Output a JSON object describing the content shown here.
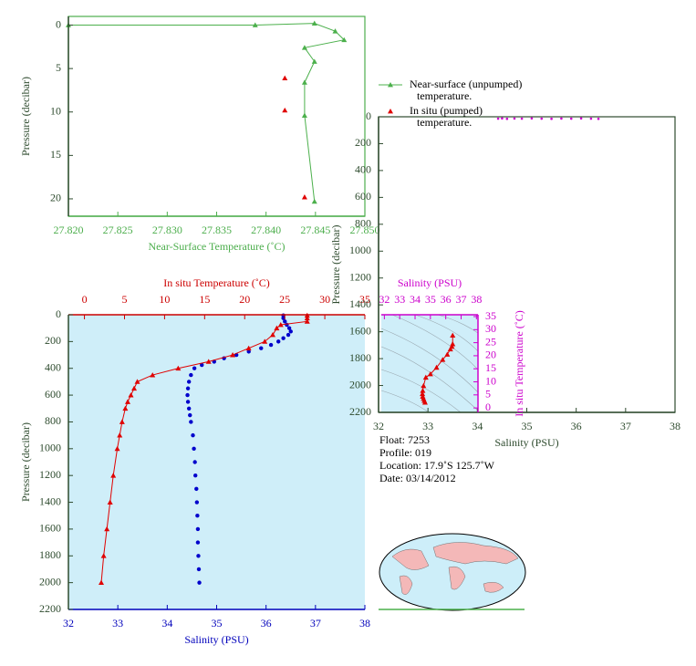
{
  "chart_data": [
    {
      "type": "line",
      "xlabel": "Near-Surface Temperature (˚C)",
      "ylabel": "Pressure (decibar)",
      "xlim": [
        27.82,
        27.85
      ],
      "xticks": [
        {
          "value": 27.82,
          "label": "27.820"
        },
        27.825,
        {
          "value": 27.83,
          "label": "27.830"
        },
        27.835,
        {
          "value": 27.84,
          "label": "27.840"
        },
        27.845,
        {
          "value": 27.85,
          "label": "27.850"
        }
      ],
      "ylim": [
        22,
        -1
      ],
      "yticks": [
        0,
        5,
        10,
        15,
        20
      ],
      "series": [
        {
          "name": "Near-surface (unpumped) temperature.",
          "color": "#4cb04c",
          "line": true,
          "marker": "triangle",
          "x": [
            27.82,
            27.8389,
            27.8449,
            27.847,
            27.8479,
            27.8439,
            27.8449,
            27.8439,
            27.8439,
            27.8449
          ],
          "values": [
            0,
            0,
            -0.2,
            0.7,
            1.7,
            2.6,
            4.2,
            6.6,
            10.4,
            20.3
          ]
        },
        {
          "name": "In situ (pumped) temperature.",
          "color": "#e00000",
          "line": false,
          "marker": "triangle",
          "x": [
            27.8419,
            27.8419,
            27.8439
          ],
          "values": [
            6.1,
            9.8,
            19.8
          ]
        }
      ]
    },
    {
      "type": "scatter",
      "xlabel": "Salinity (PSU)",
      "x2label": "In situ Temperature (˚C)",
      "ylabel": "Pressure (decibar)",
      "xlim": [
        32,
        38
      ],
      "xticks": [
        32,
        33,
        34,
        35,
        36,
        37,
        38
      ],
      "x2lim": [
        -2,
        35
      ],
      "x2ticks": [
        0,
        5,
        10,
        15,
        20,
        25,
        30,
        35
      ],
      "ylim": [
        2200,
        0
      ],
      "yticks": [
        0,
        200,
        400,
        600,
        800,
        1000,
        1200,
        1400,
        1600,
        1800,
        2000,
        2200
      ],
      "series": [
        {
          "color": "#0000cc",
          "line": false,
          "marker": "circle",
          "x": [
            36.35,
            36.35,
            36.38,
            36.42,
            36.47,
            36.5,
            36.45,
            36.35,
            36.25,
            36.1,
            35.9,
            35.65,
            35.4,
            35.15,
            34.95,
            34.7,
            34.55,
            34.48,
            34.44,
            34.42,
            34.41,
            34.42,
            34.44,
            34.46,
            34.48,
            34.52,
            34.54,
            34.56,
            34.57,
            34.59,
            34.6,
            34.61,
            34.62,
            34.62,
            34.63,
            34.64,
            34.65
          ],
          "values": [
            5,
            25,
            50,
            75,
            100,
            125,
            150,
            175,
            200,
            225,
            250,
            275,
            300,
            325,
            350,
            375,
            400,
            450,
            500,
            550,
            600,
            650,
            700,
            750,
            800,
            900,
            1000,
            1100,
            1200,
            1300,
            1400,
            1500,
            1600,
            1700,
            1800,
            1900,
            2000
          ]
        },
        {
          "color": "#e00000",
          "axis": "x2",
          "line": true,
          "marker": "triangle",
          "x": [
            27.8,
            27.8,
            27.8,
            24.5,
            24,
            23.5,
            22.5,
            20.5,
            18.5,
            15.5,
            11.7,
            8.5,
            6.6,
            6.2,
            5.8,
            5.4,
            5.1,
            4.7,
            4.4,
            4.1,
            3.6,
            3.2,
            2.8,
            2.4,
            2.1
          ],
          "values": [
            5,
            25,
            50,
            75,
            100,
            150,
            200,
            250,
            300,
            350,
            400,
            450,
            500,
            550,
            600,
            650,
            700,
            800,
            900,
            1000,
            1200,
            1400,
            1600,
            1800,
            2000
          ]
        }
      ]
    },
    {
      "type": "scatter",
      "xlabel": "Salinity (PSU)",
      "ylabel": "Pressure (decibar)",
      "xlim": [
        32,
        38
      ],
      "xticks": [
        32,
        33,
        34,
        35,
        36,
        37,
        38
      ],
      "ylim": [
        2200,
        0
      ],
      "yticks": [
        0,
        200,
        400,
        600,
        800,
        1000,
        1200,
        1400,
        1600,
        1800,
        2000,
        2200
      ],
      "series": [
        {
          "color": "#cc00cc",
          "line": false,
          "marker": "dot",
          "x": [
            34.42,
            34.5,
            34.6,
            34.75,
            34.9,
            35.1,
            35.3,
            35.5,
            35.7,
            35.9,
            36.1,
            36.3,
            36.45
          ],
          "values": [
            14,
            12,
            15,
            13,
            14,
            12,
            14,
            15,
            13,
            14,
            12,
            14,
            15
          ]
        }
      ]
    },
    {
      "type": "line",
      "xlabel": "Salinity (PSU)",
      "ylabel": "In situ Temperature (˚C)",
      "xlim": [
        31.8,
        38.1
      ],
      "xticks": [
        32,
        33,
        34,
        35,
        36,
        37,
        38
      ],
      "ylim": [
        -1.7,
        35.7
      ],
      "yticks": [
        0,
        5,
        10,
        15,
        20,
        25,
        30,
        35
      ],
      "series": [
        {
          "color": "#e00000",
          "line": true,
          "marker": "triangle",
          "x": [
            36.45,
            36.45,
            36.4,
            36.3,
            36.1,
            35.8,
            35.4,
            35.0,
            34.7,
            34.55,
            34.5,
            34.48,
            34.5,
            34.55,
            34.6,
            34.65
          ],
          "values": [
            27.8,
            24.5,
            23.5,
            22.5,
            20.5,
            18.5,
            15.5,
            13,
            11.7,
            8.5,
            6.6,
            5.4,
            4.4,
            3.6,
            2.8,
            2.1
          ]
        }
      ]
    }
  ],
  "info": [
    "Float:  7253",
    "Profile:  019",
    "Location:  17.9˚S  125.7˚W",
    "Date:  03/14/2012"
  ]
}
